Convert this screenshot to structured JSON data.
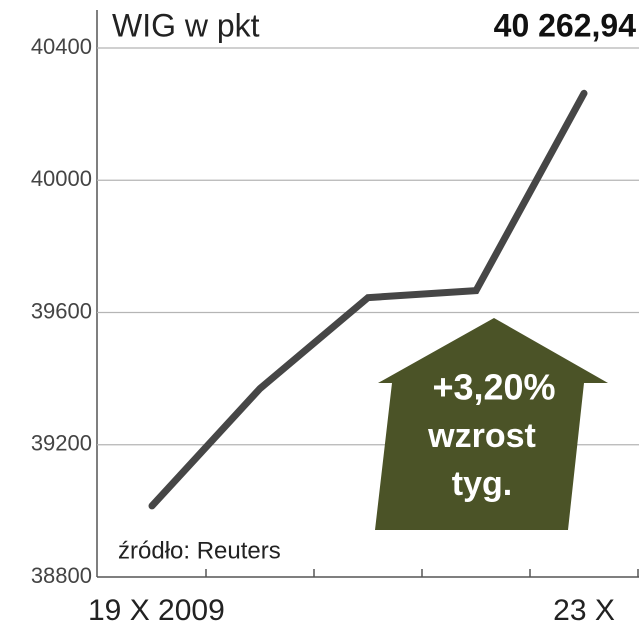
{
  "chart_data": {
    "type": "line",
    "title": "WIG w pkt",
    "categories": [
      "19 X 2009",
      null,
      null,
      null,
      "23 X"
    ],
    "values": [
      39015,
      39370,
      39645,
      39666,
      40262.94
    ],
    "value_labels": [
      null,
      null,
      null,
      null,
      "40 262,94"
    ],
    "color": "#464646",
    "ylim": [
      38800,
      40400
    ],
    "yticks": [
      38800,
      39200,
      39600,
      40000,
      40400
    ],
    "grid": true,
    "annotation": [
      "+3,20%",
      "wzrost",
      "tyg."
    ],
    "annotation_color": "#4b5327",
    "source": "źródło: Reuters"
  }
}
